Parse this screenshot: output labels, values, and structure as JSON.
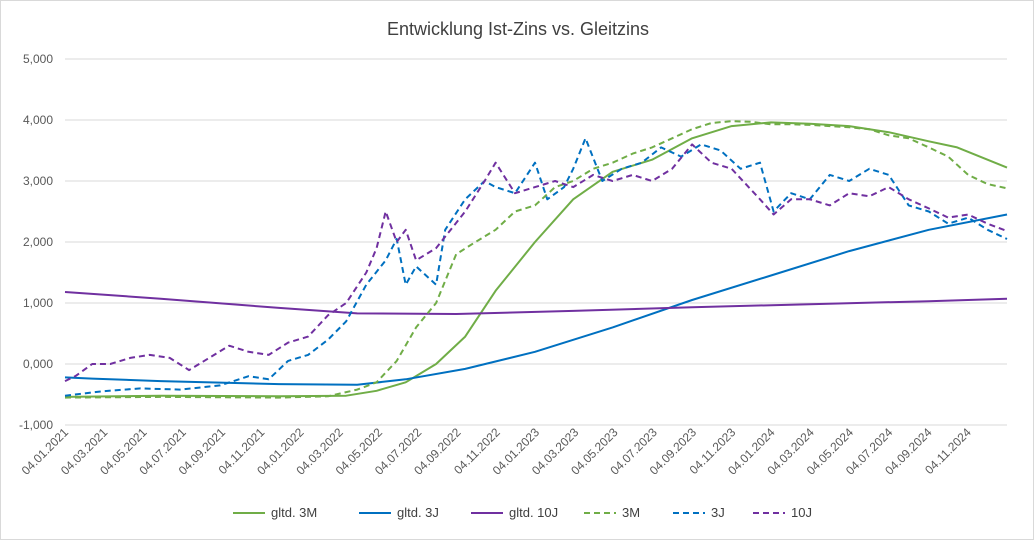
{
  "chart_data": {
    "type": "line",
    "title": "Entwicklung Ist-Zins vs. Gleitzins",
    "xlabel": "",
    "ylabel": "",
    "ylim": [
      -1,
      5
    ],
    "yticks": [
      -1,
      0,
      1,
      2,
      3,
      4,
      5
    ],
    "ytick_labels": [
      "-1,000",
      "0,000",
      "1,000",
      "2,000",
      "3,000",
      "4,000",
      "5,000"
    ],
    "x_range": [
      "2021-01-04",
      "2024-12-31"
    ],
    "xtick_labels": [
      "04.01.2021",
      "04.03.2021",
      "04.05.2021",
      "04.07.2021",
      "04.09.2021",
      "04.11.2021",
      "04.01.2022",
      "04.03.2022",
      "04.05.2022",
      "04.07.2022",
      "04.09.2022",
      "04.11.2022",
      "04.01.2023",
      "04.03.2023",
      "04.05.2023",
      "04.07.2023",
      "04.09.2023",
      "04.11.2023",
      "04.01.2024",
      "04.03.2024",
      "04.05.2024",
      "04.07.2024",
      "04.09.2024",
      "04.11.2024"
    ],
    "grid": true,
    "legend_position": "bottom",
    "series": [
      {
        "name": "gltd. 3M",
        "color": "#70ad47",
        "dash": "solid",
        "x": [
          "2021-01-04",
          "2021-06-01",
          "2021-12-01",
          "2022-03-15",
          "2022-05-01",
          "2022-06-15",
          "2022-08-01",
          "2022-09-15",
          "2022-11-01",
          "2023-01-01",
          "2023-03-01",
          "2023-05-01",
          "2023-07-01",
          "2023-09-01",
          "2023-11-01",
          "2024-01-01",
          "2024-03-01",
          "2024-05-01",
          "2024-07-01",
          "2024-09-01",
          "2024-10-15",
          "2024-12-31"
        ],
        "y": [
          -0.54,
          -0.52,
          -0.53,
          -0.52,
          -0.44,
          -0.3,
          0.0,
          0.45,
          1.2,
          2.0,
          2.7,
          3.15,
          3.35,
          3.7,
          3.9,
          3.96,
          3.94,
          3.9,
          3.8,
          3.65,
          3.55,
          3.22
        ]
      },
      {
        "name": "gltd. 3J",
        "color": "#0070c0",
        "dash": "solid",
        "x": [
          "2021-01-04",
          "2021-02-15",
          "2021-06-01",
          "2021-12-01",
          "2022-04-01",
          "2022-06-15",
          "2022-09-15",
          "2023-01-01",
          "2023-05-01",
          "2023-09-01",
          "2024-01-01",
          "2024-05-01",
          "2024-09-01",
          "2024-12-31"
        ],
        "y": [
          -0.22,
          -0.24,
          -0.28,
          -0.33,
          -0.34,
          -0.25,
          -0.08,
          0.2,
          0.6,
          1.05,
          1.45,
          1.85,
          2.2,
          2.45
        ]
      },
      {
        "name": "gltd. 10J",
        "color": "#7030a0",
        "dash": "solid",
        "x": [
          "2021-01-04",
          "2021-06-01",
          "2021-12-01",
          "2022-04-01",
          "2022-09-01",
          "2023-03-01",
          "2023-09-01",
          "2024-03-01",
          "2024-09-01",
          "2024-12-31"
        ],
        "y": [
          1.18,
          1.07,
          0.92,
          0.83,
          0.82,
          0.87,
          0.93,
          0.98,
          1.03,
          1.07
        ]
      },
      {
        "name": "3M",
        "color": "#70ad47",
        "dash": "dashed",
        "x": [
          "2021-01-04",
          "2021-06-01",
          "2021-12-01",
          "2022-02-15",
          "2022-04-01",
          "2022-05-01",
          "2022-06-01",
          "2022-07-01",
          "2022-08-01",
          "2022-09-01",
          "2022-10-01",
          "2022-11-01",
          "2022-12-01",
          "2023-01-01",
          "2023-02-01",
          "2023-03-01",
          "2023-04-01",
          "2023-05-01",
          "2023-06-01",
          "2023-07-01",
          "2023-08-01",
          "2023-09-01",
          "2023-10-01",
          "2023-11-01",
          "2023-12-01",
          "2024-01-01",
          "2024-02-01",
          "2024-03-01",
          "2024-04-01",
          "2024-05-01",
          "2024-06-01",
          "2024-07-01",
          "2024-08-01",
          "2024-09-01",
          "2024-10-01",
          "2024-11-01",
          "2024-12-01",
          "2024-12-31"
        ],
        "y": [
          -0.55,
          -0.54,
          -0.55,
          -0.53,
          -0.42,
          -0.3,
          0.05,
          0.6,
          1.0,
          1.8,
          2.0,
          2.2,
          2.5,
          2.6,
          2.9,
          3.0,
          3.2,
          3.3,
          3.45,
          3.55,
          3.7,
          3.85,
          3.95,
          3.98,
          3.97,
          3.93,
          3.93,
          3.92,
          3.9,
          3.88,
          3.85,
          3.75,
          3.7,
          3.55,
          3.4,
          3.1,
          2.95,
          2.88
        ]
      },
      {
        "name": "3J",
        "color": "#0070c0",
        "dash": "dashed",
        "x": [
          "2021-01-04",
          "2021-03-01",
          "2021-05-01",
          "2021-07-01",
          "2021-09-01",
          "2021-10-15",
          "2021-11-15",
          "2021-12-15",
          "2022-01-15",
          "2022-02-15",
          "2022-03-15",
          "2022-04-15",
          "2022-05-15",
          "2022-06-01",
          "2022-06-15",
          "2022-07-01",
          "2022-08-01",
          "2022-08-15",
          "2022-09-15",
          "2022-10-15",
          "2022-11-01",
          "2022-12-01",
          "2023-01-01",
          "2023-01-20",
          "2023-02-15",
          "2023-03-01",
          "2023-03-20",
          "2023-04-15",
          "2023-05-15",
          "2023-06-15",
          "2023-07-15",
          "2023-08-15",
          "2023-09-15",
          "2023-10-15",
          "2023-11-15",
          "2023-12-15",
          "2024-01-05",
          "2024-02-01",
          "2024-03-01",
          "2024-04-01",
          "2024-05-01",
          "2024-06-01",
          "2024-07-01",
          "2024-08-01",
          "2024-09-01",
          "2024-10-01",
          "2024-11-01",
          "2024-12-01",
          "2024-12-31"
        ],
        "y": [
          -0.52,
          -0.45,
          -0.4,
          -0.42,
          -0.35,
          -0.2,
          -0.25,
          0.05,
          0.15,
          0.4,
          0.7,
          1.3,
          1.7,
          2.05,
          1.3,
          1.6,
          1.3,
          2.2,
          2.7,
          3.0,
          2.9,
          2.8,
          3.3,
          2.7,
          2.9,
          3.2,
          3.7,
          3.0,
          3.2,
          3.3,
          3.55,
          3.4,
          3.6,
          3.5,
          3.2,
          3.3,
          2.5,
          2.8,
          2.7,
          3.1,
          3.0,
          3.2,
          3.1,
          2.6,
          2.5,
          2.3,
          2.4,
          2.2,
          2.05
        ]
      },
      {
        "name": "10J",
        "color": "#7030a0",
        "dash": "dashed",
        "x": [
          "2021-01-04",
          "2021-01-20",
          "2021-02-15",
          "2021-03-15",
          "2021-04-15",
          "2021-05-15",
          "2021-06-15",
          "2021-07-15",
          "2021-08-15",
          "2021-09-15",
          "2021-10-15",
          "2021-11-15",
          "2021-12-15",
          "2022-01-15",
          "2022-02-15",
          "2022-03-15",
          "2022-04-15",
          "2022-05-01",
          "2022-05-15",
          "2022-06-01",
          "2022-06-15",
          "2022-07-01",
          "2022-08-01",
          "2022-09-15",
          "2022-10-15",
          "2022-11-01",
          "2022-12-01",
          "2023-01-01",
          "2023-02-01",
          "2023-03-01",
          "2023-04-01",
          "2023-05-01",
          "2023-06-01",
          "2023-07-01",
          "2023-08-01",
          "2023-09-01",
          "2023-10-01",
          "2023-11-01",
          "2023-12-15",
          "2024-01-05",
          "2024-02-01",
          "2024-03-01",
          "2024-04-01",
          "2024-05-01",
          "2024-06-01",
          "2024-07-01",
          "2024-08-01",
          "2024-09-01",
          "2024-10-01",
          "2024-11-01",
          "2024-12-01",
          "2024-12-31"
        ],
        "y": [
          -0.28,
          -0.2,
          0.0,
          0.0,
          0.1,
          0.15,
          0.1,
          -0.1,
          0.1,
          0.3,
          0.2,
          0.15,
          0.35,
          0.45,
          0.8,
          1.0,
          1.5,
          1.9,
          2.5,
          2.0,
          2.2,
          1.7,
          1.9,
          2.5,
          3.0,
          3.3,
          2.8,
          2.9,
          3.0,
          2.9,
          3.1,
          3.0,
          3.1,
          3.0,
          3.2,
          3.6,
          3.3,
          3.2,
          2.7,
          2.45,
          2.7,
          2.7,
          2.6,
          2.8,
          2.75,
          2.9,
          2.7,
          2.55,
          2.4,
          2.45,
          2.3,
          2.18
        ]
      }
    ]
  }
}
